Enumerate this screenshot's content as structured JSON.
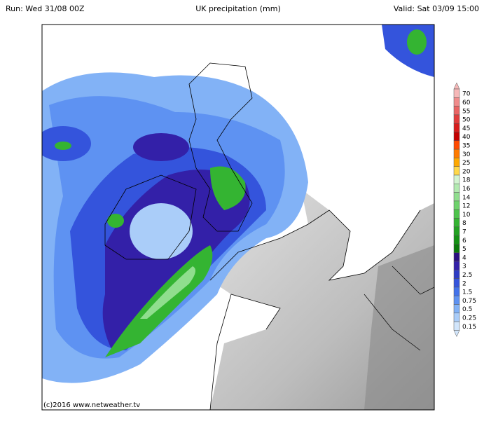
{
  "header": {
    "run": "Run: Wed 31/08 00Z",
    "title": "UK precipitation (mm)",
    "valid": "Valid: Sat 03/09 15:00"
  },
  "footer": "(c)2016 www.netweather.tv",
  "legend": {
    "items": [
      {
        "label": "70",
        "color": "#f6b8b8"
      },
      {
        "label": "60",
        "color": "#f08c8c"
      },
      {
        "label": "55",
        "color": "#ea6464"
      },
      {
        "label": "50",
        "color": "#e23c3c"
      },
      {
        "label": "45",
        "color": "#d81c1c"
      },
      {
        "label": "40",
        "color": "#c40000"
      },
      {
        "label": "35",
        "color": "#ff4a00"
      },
      {
        "label": "30",
        "color": "#ff7a00"
      },
      {
        "label": "25",
        "color": "#ffa800"
      },
      {
        "label": "20",
        "color": "#ffd84a"
      },
      {
        "label": "18",
        "color": "#d2f4d0"
      },
      {
        "label": "16",
        "color": "#b2eab0"
      },
      {
        "label": "14",
        "color": "#90de8e"
      },
      {
        "label": "12",
        "color": "#6ed26c"
      },
      {
        "label": "10",
        "color": "#4ec44c"
      },
      {
        "label": "8",
        "color": "#34b432"
      },
      {
        "label": "7",
        "color": "#22a222"
      },
      {
        "label": "6",
        "color": "#149214"
      },
      {
        "label": "5",
        "color": "#0a7a0a"
      },
      {
        "label": "4",
        "color": "#2a1080"
      },
      {
        "label": "3",
        "color": "#3320a8"
      },
      {
        "label": "2.5",
        "color": "#2e3cc4"
      },
      {
        "label": "2",
        "color": "#3454dc"
      },
      {
        "label": "1.5",
        "color": "#4272ea"
      },
      {
        "label": "0.75",
        "color": "#5e92f2"
      },
      {
        "label": "0.5",
        "color": "#82b2f6"
      },
      {
        "label": "0.25",
        "color": "#aacdf9"
      },
      {
        "label": "0.15",
        "color": "#d2e6fc"
      }
    ]
  }
}
